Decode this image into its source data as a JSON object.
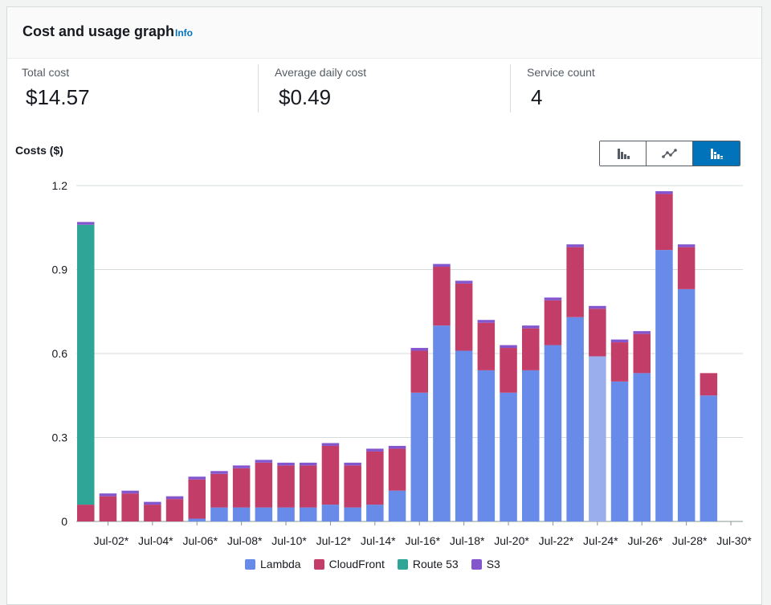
{
  "header": {
    "title": "Cost and usage graph",
    "info": "Info"
  },
  "stats": [
    {
      "label": "Total cost",
      "value": "$14.57"
    },
    {
      "label": "Average daily cost",
      "value": "$0.49"
    },
    {
      "label": "Service count",
      "value": "4"
    }
  ],
  "costs_label": "Costs ($)",
  "toggles": [
    {
      "name": "bar-chart-icon",
      "active": false
    },
    {
      "name": "line-chart-icon",
      "active": false
    },
    {
      "name": "stacked-bar-icon",
      "active": true
    }
  ],
  "colors": {
    "Lambda": "#688ae8",
    "CloudFront": "#c33d69",
    "Route 53": "#2ea597",
    "S3": "#8456ce",
    "highlight": "#9aaeee"
  },
  "chart_data": {
    "type": "bar",
    "stacked": true,
    "ylim": [
      0,
      1.2
    ],
    "yticks": [
      "0",
      "0.3",
      "0.6",
      "0.9",
      "1.2"
    ],
    "xtick_labels": [
      "Jul-02*",
      "Jul-04*",
      "Jul-06*",
      "Jul-08*",
      "Jul-10*",
      "Jul-12*",
      "Jul-14*",
      "Jul-16*",
      "Jul-18*",
      "Jul-20*",
      "Jul-22*",
      "Jul-24*",
      "Jul-26*",
      "Jul-28*",
      "Jul-30*"
    ],
    "categories": [
      "Jul-01",
      "Jul-02",
      "Jul-03",
      "Jul-04",
      "Jul-05",
      "Jul-06",
      "Jul-07",
      "Jul-08",
      "Jul-09",
      "Jul-10",
      "Jul-11",
      "Jul-12",
      "Jul-13",
      "Jul-14",
      "Jul-15",
      "Jul-16",
      "Jul-17",
      "Jul-18",
      "Jul-19",
      "Jul-20",
      "Jul-21",
      "Jul-22",
      "Jul-23",
      "Jul-24",
      "Jul-25",
      "Jul-26",
      "Jul-27",
      "Jul-28",
      "Jul-29",
      "Jul-30"
    ],
    "series": [
      {
        "name": "Lambda",
        "values": [
          0,
          0,
          0,
          0,
          0,
          0.01,
          0.05,
          0.05,
          0.05,
          0.05,
          0.05,
          0.06,
          0.05,
          0.06,
          0.11,
          0.46,
          0.7,
          0.61,
          0.54,
          0.46,
          0.54,
          0.63,
          0.73,
          0.59,
          0.5,
          0.53,
          0.97,
          0.83,
          0.45,
          0
        ]
      },
      {
        "name": "CloudFront",
        "values": [
          0.06,
          0.09,
          0.1,
          0.06,
          0.08,
          0.14,
          0.12,
          0.14,
          0.16,
          0.15,
          0.15,
          0.21,
          0.15,
          0.19,
          0.15,
          0.15,
          0.21,
          0.24,
          0.17,
          0.16,
          0.15,
          0.16,
          0.25,
          0.17,
          0.14,
          0.14,
          0.2,
          0.15,
          0.08,
          0
        ]
      },
      {
        "name": "Route 53",
        "values": [
          1.0,
          0,
          0,
          0,
          0,
          0,
          0,
          0,
          0,
          0,
          0,
          0,
          0,
          0,
          0,
          0,
          0,
          0,
          0,
          0,
          0,
          0,
          0,
          0,
          0,
          0,
          0,
          0,
          0,
          0
        ]
      },
      {
        "name": "S3",
        "values": [
          0.01,
          0.01,
          0.01,
          0.01,
          0.01,
          0.01,
          0.01,
          0.01,
          0.01,
          0.01,
          0.01,
          0.01,
          0.01,
          0.01,
          0.01,
          0.01,
          0.01,
          0.01,
          0.01,
          0.01,
          0.01,
          0.01,
          0.01,
          0.01,
          0.01,
          0.01,
          0.01,
          0.01,
          0,
          0
        ]
      }
    ],
    "highlighted_index": 23,
    "legend": [
      "Lambda",
      "CloudFront",
      "Route 53",
      "S3"
    ],
    "legend_position": "bottom",
    "grid": true
  }
}
